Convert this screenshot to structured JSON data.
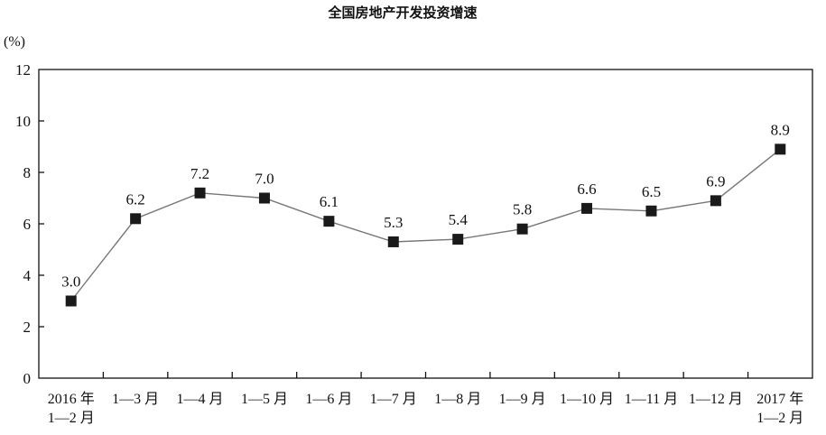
{
  "chart_data": {
    "type": "line",
    "title": "全国房地产开发投资增速",
    "ylabel": "(%)",
    "xlabel": "",
    "ylim": [
      0,
      12
    ],
    "yticks": [
      "0",
      "2",
      "4",
      "6",
      "8",
      "10",
      "12"
    ],
    "categories": [
      [
        "2016 年",
        "1—2 月"
      ],
      [
        "1—3 月"
      ],
      [
        "1—4 月"
      ],
      [
        "1—5 月"
      ],
      [
        "1—6 月"
      ],
      [
        "1—7 月"
      ],
      [
        "1—8 月"
      ],
      [
        "1—9 月"
      ],
      [
        "1—10 月"
      ],
      [
        "1—11 月"
      ],
      [
        "1—12 月"
      ],
      [
        "2017 年",
        "1—2 月"
      ]
    ],
    "values": [
      3.0,
      6.2,
      7.2,
      7.0,
      6.1,
      5.3,
      5.4,
      5.8,
      6.6,
      6.5,
      6.9,
      8.9
    ],
    "labels": [
      "3.0",
      "6.2",
      "7.2",
      "7.0",
      "6.1",
      "5.3",
      "5.4",
      "5.8",
      "6.6",
      "6.5",
      "6.9",
      "8.9"
    ],
    "grid": false,
    "colors": {
      "line": "#777777",
      "marker": "#1a1a1a",
      "axis": "#111111"
    }
  }
}
